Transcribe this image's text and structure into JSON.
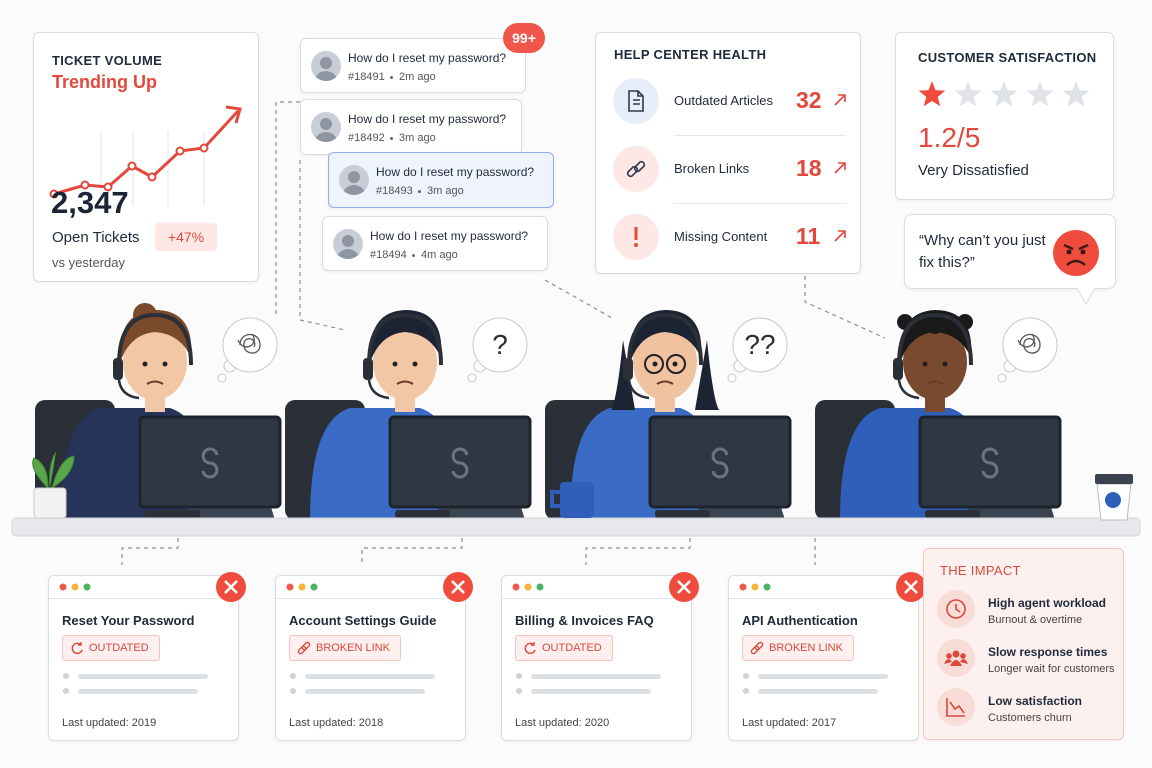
{
  "ticket_volume": {
    "title": "TICKET VOLUME",
    "trend": "Trending Up",
    "count": "2,347",
    "count_label": "Open Tickets",
    "change": "+47%",
    "comparison": "vs yesterday"
  },
  "ticket_queue": {
    "badge": "99+",
    "tickets": [
      {
        "question": "How do I reset my password?",
        "id": "#18491",
        "age": "2m ago"
      },
      {
        "question": "How do I reset my password?",
        "id": "#18492",
        "age": "3m ago"
      },
      {
        "question": "How do I reset my password?",
        "id": "#18493",
        "age": "3m ago"
      },
      {
        "question": "How do I reset my password?",
        "id": "#18494",
        "age": "4m ago"
      }
    ]
  },
  "help_center_health": {
    "title": "HELP CENTER HEALTH",
    "metrics": [
      {
        "label": "Outdated Articles",
        "value": "32"
      },
      {
        "label": "Broken Links",
        "value": "18"
      },
      {
        "label": "Missing Content",
        "value": "11"
      }
    ]
  },
  "customer_satisfaction": {
    "title": "CUSTOMER SATISFACTION",
    "score": "1.2/5",
    "rating": "Very Dissatisfied"
  },
  "customer_quote": "“Why can’t you just fix this?”",
  "agent_thoughts": [
    "?",
    "??"
  ],
  "articles": [
    {
      "title": "Reset Your Password",
      "status": "OUTDATED",
      "updated": "Last updated: 2019"
    },
    {
      "title": "Account Settings Guide",
      "status": "BROKEN LINK",
      "updated": "Last updated: 2018"
    },
    {
      "title": "Billing & Invoices FAQ",
      "status": "OUTDATED",
      "updated": "Last updated: 2020"
    },
    {
      "title": "API Authentication",
      "status": "BROKEN LINK",
      "updated": "Last updated: 2017"
    }
  ],
  "impact": {
    "title": "THE IMPACT",
    "items": [
      {
        "title": "High agent workload",
        "detail": "Burnout & overtime"
      },
      {
        "title": "Slow response times",
        "detail": "Longer wait for customers"
      },
      {
        "title": "Low satisfaction",
        "detail": "Customers churn"
      }
    ]
  }
}
